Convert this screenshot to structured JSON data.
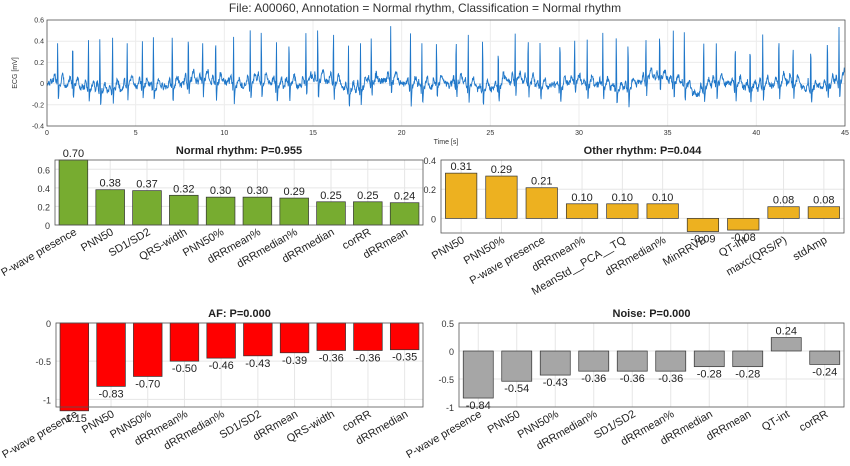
{
  "page_title": "File: A00060, Annotation = Normal rhythm, Classification = Normal rhythm",
  "colors": {
    "ecg": "#1f77c9",
    "normal": "#77ac30",
    "other": "#edb120",
    "af": "#ff0000",
    "noise": "#a6a6a6"
  },
  "chart_data": [
    {
      "type": "line",
      "title": "",
      "xlabel": "Time [s]",
      "ylabel": "ECG [mV]",
      "xlim": [
        0,
        45
      ],
      "ylim": [
        -0.4,
        0.6
      ],
      "xticks": [
        0,
        5,
        10,
        15,
        20,
        25,
        30,
        35,
        40,
        45
      ],
      "yticks": [
        -0.4,
        -0.2,
        0,
        0.2,
        0.4,
        0.6
      ],
      "yticklabels": [
        "-0.4",
        "-0.2",
        "0",
        "0.2",
        "0.4",
        "0.6"
      ],
      "grid": true
    },
    {
      "type": "bar",
      "title": "Normal rhythm: P=0.955",
      "categories": [
        "P-wave presence",
        "PNN50",
        "SD1/SD2",
        "QRS-width",
        "PNN50%",
        "dRRmean%",
        "dRRmedian%",
        "dRRmedian",
        "corRR",
        "dRRmean"
      ],
      "values": [
        0.7,
        0.38,
        0.37,
        0.32,
        0.3,
        0.3,
        0.29,
        0.25,
        0.25,
        0.24
      ],
      "labels": [
        "0.70",
        "0.38",
        "0.37",
        "0.32",
        "0.30",
        "0.30",
        "0.29",
        "0.25",
        "0.25",
        "0.24"
      ],
      "ylim": [
        0,
        0.7
      ],
      "yticks": [
        0,
        0.2,
        0.4,
        0.6
      ],
      "yticklabels": [
        "0",
        "0.2",
        "0.4",
        "0.6"
      ],
      "grid": true
    },
    {
      "type": "bar",
      "title": "Other rhythm: P=0.044",
      "categories": [
        "PNN50",
        "PNN50%",
        "P-wave presence",
        "dRRmean%",
        "MeanStd__PCA__TQ",
        "dRRmedian%",
        "MinRRVB",
        "QT-int",
        "maxc(QRS/P)",
        "stdAmp"
      ],
      "values": [
        0.31,
        0.29,
        0.21,
        0.1,
        0.1,
        0.1,
        -0.09,
        -0.08,
        0.08,
        0.08
      ],
      "labels": [
        "0.31",
        "0.29",
        "0.21",
        "0.10",
        "0.10",
        "0.10",
        "-0.09",
        "-0.08",
        "0.08",
        "0.08"
      ],
      "ylim": [
        -0.1,
        0.4
      ],
      "yticks": [
        0,
        0.2,
        0.4
      ],
      "yticklabels": [
        "0",
        "0.2",
        "0.4"
      ],
      "grid": true
    },
    {
      "type": "bar",
      "title": "AF: P=0.000",
      "categories": [
        "P-wave presence",
        "PNN50",
        "PNN50%",
        "dRRmean%",
        "dRRmedian%",
        "SD1/SD2",
        "dRRmean",
        "QRS-width",
        "corRR",
        "dRRmedian"
      ],
      "values": [
        -1.15,
        -0.83,
        -0.7,
        -0.5,
        -0.46,
        -0.43,
        -0.39,
        -0.36,
        -0.36,
        -0.35
      ],
      "labels": [
        "-1.15",
        "-0.83",
        "-0.70",
        "-0.50",
        "-0.46",
        "-0.43",
        "-0.39",
        "-0.36",
        "-0.36",
        "-0.35"
      ],
      "ylim": [
        -1.1,
        0
      ],
      "yticks": [
        -1,
        -0.5,
        0
      ],
      "yticklabels": [
        "-1",
        "-0.5",
        "0"
      ],
      "grid": true
    },
    {
      "type": "bar",
      "title": "Noise: P=0.000",
      "categories": [
        "P-wave presence",
        "PNN50",
        "PNN50%",
        "dRRmedian%",
        "SD1/SD2",
        "dRRmean%",
        "dRRmedian",
        "dRRmean",
        "QT-int",
        "corRR"
      ],
      "values": [
        -0.84,
        -0.54,
        -0.43,
        -0.36,
        -0.36,
        -0.36,
        -0.28,
        -0.28,
        0.24,
        -0.24
      ],
      "labels": [
        "-0.84",
        "-0.54",
        "-0.43",
        "-0.36",
        "-0.36",
        "-0.36",
        "-0.28",
        "-0.28",
        "0.24",
        "-0.24"
      ],
      "ylim": [
        -1,
        0.5
      ],
      "yticks": [
        -1,
        -0.5,
        0,
        0.5
      ],
      "yticklabels": [
        "-1",
        "-0.5",
        "0",
        "0.5"
      ],
      "grid": true
    }
  ]
}
